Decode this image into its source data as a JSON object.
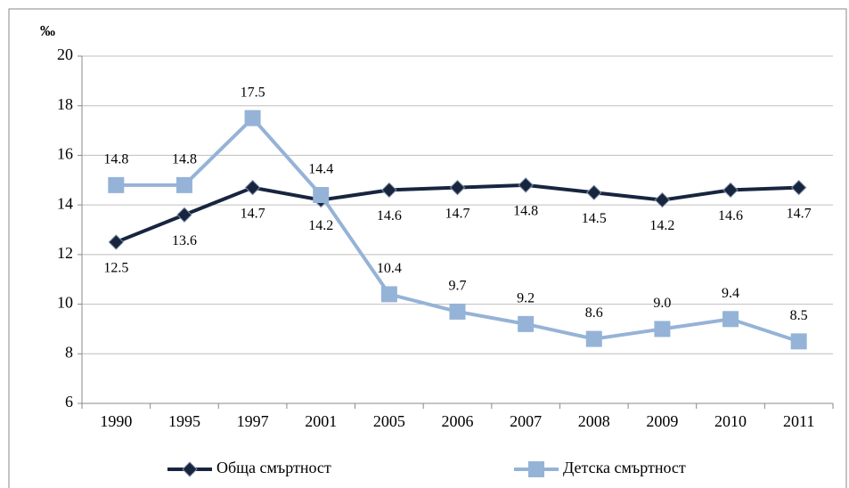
{
  "chart_data": {
    "type": "line",
    "y_axis_label": "‰",
    "categories": [
      "1990",
      "1995",
      "1997",
      "2001",
      "2005",
      "2006",
      "2007",
      "2008",
      "2009",
      "2010",
      "2011"
    ],
    "series": [
      {
        "name": "Обща смъртност",
        "color": "#17253f",
        "marker": "diamond",
        "values": [
          12.5,
          13.6,
          14.7,
          14.2,
          14.6,
          14.7,
          14.8,
          14.5,
          14.2,
          14.6,
          14.7
        ],
        "value_labels": [
          "12.5",
          "13.6",
          "14.7",
          "14.2",
          "14.6",
          "14.7",
          "14.8",
          "14.5",
          "14.2",
          "14.6",
          "14.7"
        ]
      },
      {
        "name": "Детска смъртност",
        "color": "#95b3d7",
        "marker": "square",
        "values": [
          14.8,
          14.8,
          17.5,
          14.4,
          10.4,
          9.7,
          9.2,
          8.6,
          9.0,
          9.4,
          8.5
        ],
        "value_labels": [
          "14.8",
          "14.8",
          "17.5",
          "14.4",
          "10.4",
          "9.7",
          "9.2",
          "8.6",
          "9.0",
          "9.4",
          "8.5"
        ]
      }
    ],
    "ylim": [
      6,
      20
    ],
    "yticks": [
      6,
      8,
      10,
      12,
      14,
      16,
      18,
      20
    ],
    "grid": true,
    "legend": "bottom"
  }
}
